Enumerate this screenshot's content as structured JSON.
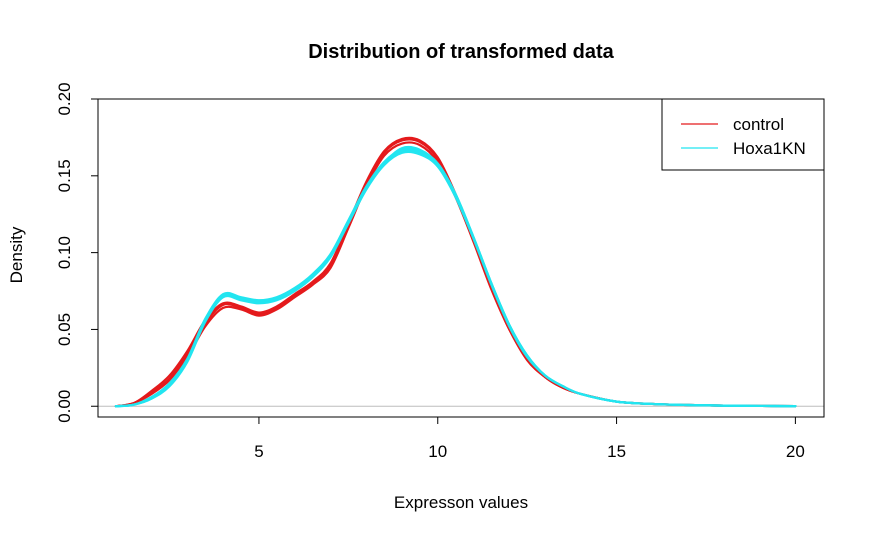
{
  "chart_data": {
    "type": "line",
    "title": "Distribution of transformed data",
    "xlabel": "Expresson values",
    "ylabel": "Density",
    "xlim": [
      0.5,
      20.8
    ],
    "ylim": [
      -0.007,
      0.2
    ],
    "x_ticks": [
      5,
      10,
      15,
      20
    ],
    "x_tick_labels": [
      "5",
      "10",
      "15",
      "20"
    ],
    "y_ticks": [
      0.0,
      0.05,
      0.1,
      0.15,
      0.2
    ],
    "y_tick_labels": [
      "0.00",
      "0.05",
      "0.10",
      "0.15",
      "0.20"
    ],
    "baseline": 0,
    "legend": {
      "position": "top-right",
      "entries": [
        {
          "label": "control",
          "color": "#e41a1c"
        },
        {
          "label": "Hoxa1KN",
          "color": "#22e5f0"
        }
      ]
    },
    "series": [
      {
        "name": "control",
        "color": "#e41a1c",
        "x": [
          1.0,
          1.5,
          2.0,
          2.5,
          3.0,
          3.5,
          4.0,
          4.5,
          5.0,
          5.5,
          6.0,
          6.5,
          7.0,
          7.5,
          8.0,
          8.5,
          9.0,
          9.5,
          10.0,
          10.5,
          11.0,
          11.5,
          12.0,
          12.5,
          13.0,
          13.5,
          14.0,
          15.0,
          16.0,
          17.0,
          18.0,
          19.0,
          20.0
        ],
        "y": [
          0.0,
          0.002,
          0.009,
          0.018,
          0.034,
          0.054,
          0.066,
          0.064,
          0.06,
          0.064,
          0.072,
          0.08,
          0.092,
          0.118,
          0.145,
          0.165,
          0.173,
          0.172,
          0.161,
          0.137,
          0.108,
          0.077,
          0.05,
          0.031,
          0.019,
          0.012,
          0.008,
          0.003,
          0.0015,
          0.0008,
          0.0004,
          0.0002,
          0.0001
        ]
      },
      {
        "name": "control",
        "color": "#e41a1c",
        "x": [
          1.0,
          1.5,
          2.0,
          2.5,
          3.0,
          3.5,
          4.0,
          4.5,
          5.0,
          5.5,
          6.0,
          6.5,
          7.0,
          7.5,
          8.0,
          8.5,
          9.0,
          9.5,
          10.0,
          10.5,
          11.0,
          11.5,
          12.0,
          12.5,
          13.0,
          13.5,
          14.0,
          15.0,
          16.0,
          17.0,
          18.0,
          19.0,
          20.0
        ],
        "y": [
          0.0,
          0.002,
          0.01,
          0.02,
          0.036,
          0.056,
          0.067,
          0.065,
          0.061,
          0.065,
          0.073,
          0.081,
          0.093,
          0.119,
          0.146,
          0.166,
          0.174,
          0.173,
          0.162,
          0.138,
          0.109,
          0.078,
          0.051,
          0.031,
          0.019,
          0.012,
          0.008,
          0.003,
          0.0015,
          0.0008,
          0.0004,
          0.0002,
          0.0001
        ]
      },
      {
        "name": "control",
        "color": "#e41a1c",
        "x": [
          1.0,
          1.5,
          2.0,
          2.5,
          3.0,
          3.5,
          4.0,
          4.5,
          5.0,
          5.5,
          6.0,
          6.5,
          7.0,
          7.5,
          8.0,
          8.5,
          9.0,
          9.5,
          10.0,
          10.5,
          11.0,
          11.5,
          12.0,
          12.5,
          13.0,
          13.5,
          14.0,
          15.0,
          16.0,
          17.0,
          18.0,
          19.0,
          20.0
        ],
        "y": [
          0.0,
          0.002,
          0.008,
          0.017,
          0.032,
          0.052,
          0.064,
          0.063,
          0.059,
          0.063,
          0.071,
          0.079,
          0.09,
          0.116,
          0.143,
          0.163,
          0.171,
          0.17,
          0.159,
          0.136,
          0.107,
          0.076,
          0.05,
          0.03,
          0.019,
          0.012,
          0.008,
          0.003,
          0.0015,
          0.0008,
          0.0004,
          0.0002,
          0.0001
        ]
      },
      {
        "name": "Hoxa1KN",
        "color": "#22e5f0",
        "x": [
          1.0,
          1.5,
          2.0,
          2.5,
          3.0,
          3.5,
          4.0,
          4.5,
          5.0,
          5.5,
          6.0,
          6.5,
          7.0,
          7.5,
          8.0,
          8.5,
          9.0,
          9.5,
          10.0,
          10.5,
          11.0,
          11.5,
          12.0,
          12.5,
          13.0,
          13.5,
          14.0,
          15.0,
          16.0,
          17.0,
          18.0,
          19.0,
          20.0
        ],
        "y": [
          0.0,
          0.001,
          0.005,
          0.014,
          0.03,
          0.056,
          0.072,
          0.07,
          0.068,
          0.07,
          0.076,
          0.085,
          0.098,
          0.12,
          0.142,
          0.158,
          0.166,
          0.165,
          0.157,
          0.137,
          0.11,
          0.08,
          0.053,
          0.033,
          0.02,
          0.013,
          0.008,
          0.003,
          0.0015,
          0.0008,
          0.0004,
          0.0002,
          0.0001
        ]
      },
      {
        "name": "Hoxa1KN",
        "color": "#22e5f0",
        "x": [
          1.0,
          1.5,
          2.0,
          2.5,
          3.0,
          3.5,
          4.0,
          4.5,
          5.0,
          5.5,
          6.0,
          6.5,
          7.0,
          7.5,
          8.0,
          8.5,
          9.0,
          9.5,
          10.0,
          10.5,
          11.0,
          11.5,
          12.0,
          12.5,
          13.0,
          13.5,
          14.0,
          15.0,
          16.0,
          17.0,
          18.0,
          19.0,
          20.0
        ],
        "y": [
          0.0,
          0.001,
          0.006,
          0.015,
          0.031,
          0.057,
          0.073,
          0.071,
          0.069,
          0.071,
          0.077,
          0.086,
          0.099,
          0.121,
          0.143,
          0.159,
          0.167,
          0.166,
          0.158,
          0.138,
          0.11,
          0.08,
          0.053,
          0.033,
          0.02,
          0.013,
          0.008,
          0.003,
          0.0015,
          0.0008,
          0.0004,
          0.0002,
          0.0001
        ]
      },
      {
        "name": "Hoxa1KN",
        "color": "#22e5f0",
        "x": [
          1.0,
          1.5,
          2.0,
          2.5,
          3.0,
          3.5,
          4.0,
          4.5,
          5.0,
          5.5,
          6.0,
          6.5,
          7.0,
          7.5,
          8.0,
          8.5,
          9.0,
          9.5,
          10.0,
          10.5,
          11.0,
          11.5,
          12.0,
          12.5,
          13.0,
          13.5,
          14.0,
          15.0,
          16.0,
          17.0,
          18.0,
          19.0,
          20.0
        ],
        "y": [
          0.0,
          0.001,
          0.005,
          0.013,
          0.029,
          0.055,
          0.071,
          0.069,
          0.067,
          0.069,
          0.075,
          0.084,
          0.097,
          0.119,
          0.141,
          0.157,
          0.165,
          0.164,
          0.156,
          0.136,
          0.109,
          0.079,
          0.052,
          0.032,
          0.02,
          0.013,
          0.008,
          0.003,
          0.0015,
          0.0008,
          0.0004,
          0.0002,
          0.0001
        ]
      },
      {
        "name": "Hoxa1KN",
        "color": "#22e5f0",
        "x": [
          1.0,
          1.5,
          2.0,
          2.5,
          3.0,
          3.5,
          4.0,
          4.5,
          5.0,
          5.5,
          6.0,
          6.5,
          7.0,
          7.5,
          8.0,
          8.5,
          9.0,
          9.5,
          10.0,
          10.5,
          11.0,
          11.5,
          12.0,
          12.5,
          13.0,
          13.5,
          14.0,
          15.0,
          16.0,
          17.0,
          18.0,
          19.0,
          20.0
        ],
        "y": [
          0.0,
          0.001,
          0.006,
          0.014,
          0.03,
          0.056,
          0.072,
          0.07,
          0.068,
          0.07,
          0.076,
          0.085,
          0.098,
          0.12,
          0.142,
          0.158,
          0.168,
          0.167,
          0.158,
          0.138,
          0.11,
          0.08,
          0.053,
          0.033,
          0.02,
          0.013,
          0.008,
          0.003,
          0.0015,
          0.0008,
          0.0004,
          0.0002,
          0.0001
        ]
      }
    ]
  }
}
